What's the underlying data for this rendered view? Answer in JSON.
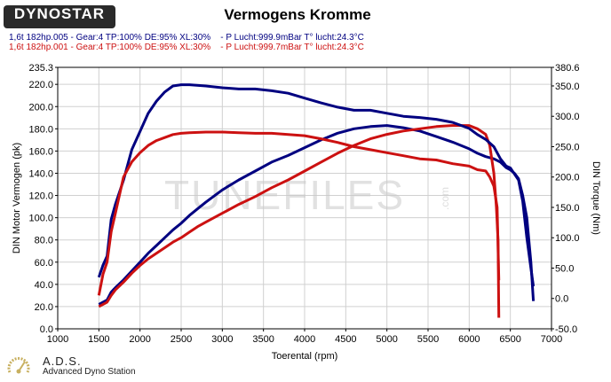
{
  "header": {
    "logo_text": "DYNOSTAR",
    "title": "Vermogens Kromme"
  },
  "runs": [
    {
      "info": "1,6t 182hp.005 - Gear:4 TP:100% DE:95% XL:30%    - P Lucht:999.9mBar T° lucht:24.3°C",
      "color": "#000080"
    },
    {
      "info": "1,6t 182hp.001 - Gear:4 TP:100% DE:95% XL:30%    - P Lucht:999.7mBar T° lucht:24.3°C",
      "color": "#cc1111"
    }
  ],
  "watermark": "TUNEFILES",
  "watermark_suffix": ".com",
  "footer": {
    "title": "A.D.S.",
    "subtitle": "Advanced Dyno Station"
  },
  "chart_data": {
    "type": "line",
    "xlabel": "Toerental (rpm)",
    "ylabel_left": "DIN Motor Vermogen (pk)",
    "ylabel_right": "DIN Torque (Nm)",
    "xlim": [
      1000,
      7000
    ],
    "ylim_left": [
      0,
      235.3
    ],
    "ylim_right": [
      -50,
      380.6
    ],
    "x_ticks": [
      "1000",
      "1500",
      "2000",
      "2500",
      "3000",
      "3500",
      "4000",
      "4500",
      "5000",
      "5500",
      "6000",
      "6500",
      "7000"
    ],
    "y_ticks_left": [
      "0.0",
      "20.0",
      "40.0",
      "60.0",
      "80.0",
      "100.0",
      "120.0",
      "140.0",
      "160.0",
      "180.0",
      "200.0",
      "220.0",
      "235.3"
    ],
    "y_ticks_right": [
      "-50.0",
      "0.0",
      "50.0",
      "100.0",
      "150.0",
      "200.0",
      "250.0",
      "300.0",
      "350.0",
      "380.6"
    ],
    "grid": true,
    "series": [
      {
        "run": 0,
        "axis": "left",
        "color": "#000080",
        "x": [
          1500,
          1550,
          1600,
          1650,
          1700,
          1800,
          1900,
          2000,
          2100,
          2200,
          2300,
          2400,
          2500,
          2600,
          2700,
          2800,
          3000,
          3200,
          3400,
          3600,
          3800,
          4000,
          4200,
          4400,
          4600,
          4800,
          5000,
          5200,
          5400,
          5600,
          5800,
          6000,
          6100,
          6200,
          6300,
          6380,
          6450,
          6500,
          6550,
          6600,
          6650,
          6700,
          6750,
          6780
        ],
        "y": [
          22,
          24,
          26,
          33,
          37,
          44,
          52,
          60,
          68,
          75,
          82,
          89,
          95,
          102,
          108,
          114,
          125,
          134,
          142,
          150,
          156,
          163,
          170,
          176,
          180,
          182,
          183,
          181,
          178,
          173,
          168,
          162,
          158,
          155,
          153,
          150,
          145,
          143,
          140,
          135,
          120,
          100,
          60,
          25
        ]
      },
      {
        "run": 1,
        "axis": "left",
        "color": "#cc1111",
        "x": [
          1500,
          1550,
          1600,
          1650,
          1700,
          1800,
          1900,
          2000,
          2100,
          2200,
          2300,
          2400,
          2500,
          2600,
          2700,
          2800,
          3000,
          3200,
          3400,
          3600,
          3800,
          4000,
          4200,
          4400,
          4600,
          4800,
          5000,
          5200,
          5400,
          5600,
          5800,
          6000,
          6100,
          6200,
          6250,
          6300,
          6330,
          6350,
          6360
        ],
        "y": [
          20,
          22,
          24,
          30,
          35,
          42,
          50,
          57,
          63,
          68,
          73,
          78,
          82,
          87,
          92,
          96,
          104,
          112,
          119,
          127,
          134,
          142,
          150,
          158,
          165,
          171,
          175,
          178,
          180,
          182,
          183,
          183,
          180,
          175,
          165,
          140,
          110,
          80,
          10
        ]
      },
      {
        "run": 0,
        "axis": "right",
        "color": "#000080",
        "x": [
          1500,
          1550,
          1600,
          1650,
          1700,
          1800,
          1900,
          2000,
          2100,
          2200,
          2300,
          2400,
          2500,
          2600,
          2800,
          3000,
          3200,
          3400,
          3600,
          3800,
          4000,
          4200,
          4400,
          4600,
          4800,
          5000,
          5200,
          5400,
          5600,
          5800,
          6000,
          6100,
          6200,
          6300,
          6380,
          6450,
          6500,
          6550,
          6600,
          6650,
          6700,
          6750,
          6780
        ],
        "y": [
          35,
          55,
          70,
          130,
          155,
          195,
          245,
          275,
          305,
          325,
          340,
          350,
          352,
          352,
          350,
          347,
          345,
          345,
          342,
          338,
          330,
          322,
          315,
          310,
          310,
          305,
          300,
          298,
          295,
          290,
          280,
          270,
          262,
          250,
          230,
          218,
          215,
          205,
          195,
          160,
          100,
          50,
          20
        ]
      },
      {
        "run": 1,
        "axis": "right",
        "color": "#cc1111",
        "x": [
          1500,
          1550,
          1600,
          1650,
          1700,
          1800,
          1900,
          2000,
          2100,
          2200,
          2300,
          2400,
          2500,
          2600,
          2800,
          3000,
          3200,
          3400,
          3600,
          3800,
          4000,
          4200,
          4400,
          4600,
          4800,
          5000,
          5200,
          5400,
          5600,
          5800,
          6000,
          6100,
          6200,
          6250,
          6300,
          6340,
          6360
        ],
        "y": [
          5,
          40,
          60,
          110,
          140,
          200,
          225,
          240,
          252,
          260,
          265,
          270,
          272,
          273,
          274,
          274,
          273,
          272,
          272,
          270,
          268,
          263,
          257,
          250,
          245,
          240,
          235,
          230,
          228,
          222,
          218,
          212,
          210,
          200,
          185,
          150,
          30
        ]
      }
    ]
  }
}
